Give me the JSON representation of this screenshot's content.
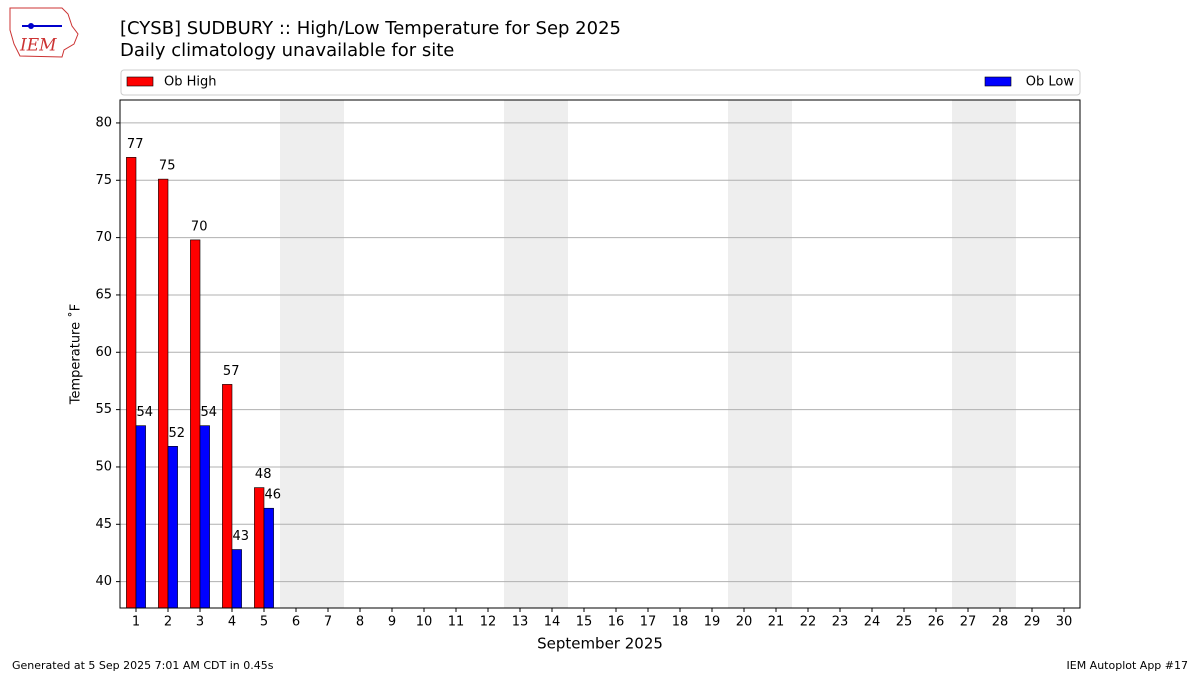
{
  "chart_data": {
    "type": "bar",
    "title": "[CYSB] SUDBURY :: High/Low Temperature for Sep 2025",
    "subtitle": "Daily climatology unavailable for site",
    "x_label": "September 2025",
    "y_label": "Temperature ˚F",
    "categories": [
      1,
      2,
      3,
      4,
      5,
      6,
      7,
      8,
      9,
      10,
      11,
      12,
      13,
      14,
      15,
      16,
      17,
      18,
      19,
      20,
      21,
      22,
      23,
      24,
      25,
      26,
      27,
      28,
      29,
      30
    ],
    "series": [
      {
        "name": "Ob High",
        "color": "#ff0000",
        "values": [
          77.0,
          75.1,
          69.8,
          57.2,
          48.2,
          null,
          null,
          null,
          null,
          null,
          null,
          null,
          null,
          null,
          null,
          null,
          null,
          null,
          null,
          null,
          null,
          null,
          null,
          null,
          null,
          null,
          null,
          null,
          null,
          null
        ],
        "value_labels": [
          "77",
          "75",
          "70",
          "57",
          "48",
          null,
          null,
          null,
          null,
          null,
          null,
          null,
          null,
          null,
          null,
          null,
          null,
          null,
          null,
          null,
          null,
          null,
          null,
          null,
          null,
          null,
          null,
          null,
          null,
          null
        ]
      },
      {
        "name": "Ob Low",
        "color": "#0000ff",
        "values": [
          53.6,
          51.8,
          53.6,
          42.8,
          46.4,
          null,
          null,
          null,
          null,
          null,
          null,
          null,
          null,
          null,
          null,
          null,
          null,
          null,
          null,
          null,
          null,
          null,
          null,
          null,
          null,
          null,
          null,
          null,
          null,
          null
        ],
        "value_labels": [
          "54",
          "52",
          "54",
          "43",
          "46",
          null,
          null,
          null,
          null,
          null,
          null,
          null,
          null,
          null,
          null,
          null,
          null,
          null,
          null,
          null,
          null,
          null,
          null,
          null,
          null,
          null,
          null,
          null,
          null,
          null
        ]
      }
    ],
    "shaded_categories": [
      6,
      7,
      13,
      14,
      20,
      21,
      27,
      28
    ],
    "ylim": [
      37.7,
      82.0
    ],
    "yticks": [
      40,
      45,
      50,
      55,
      60,
      65,
      70,
      75,
      80
    ],
    "grid": true,
    "logo_text": "IEM",
    "footer_left": "Generated at 5 Sep 2025 7:01 AM CDT in 0.45s",
    "footer_right": "IEM Autoplot App #17"
  }
}
